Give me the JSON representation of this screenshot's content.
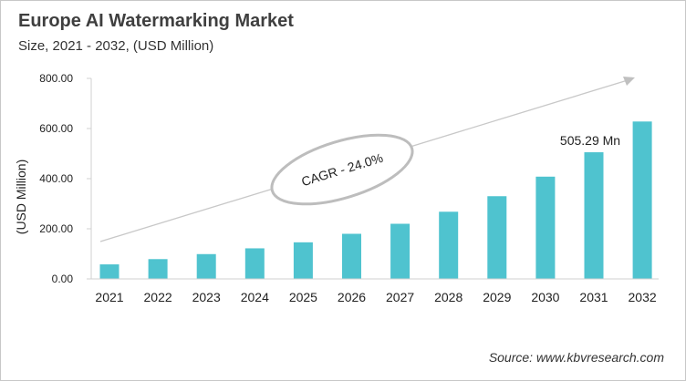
{
  "title": "Europe AI Watermarking Market",
  "subtitle": "Size, 2021 - 2032, (USD Million)",
  "source": "Source: www.kbvresearch.com",
  "chart_data": {
    "type": "bar",
    "title": "Europe AI Watermarking Market",
    "subtitle": "Size, 2021 - 2032, (USD Million)",
    "xlabel": "",
    "ylabel": "(USD Million)",
    "ylim": [
      0,
      800
    ],
    "yticks": [
      "0.00",
      "200.00",
      "400.00",
      "600.00",
      "800.00"
    ],
    "categories": [
      "2021",
      "2022",
      "2023",
      "2024",
      "2025",
      "2026",
      "2027",
      "2028",
      "2029",
      "2030",
      "2031",
      "2032"
    ],
    "values": [
      58,
      79,
      99,
      122,
      146,
      180,
      220,
      268,
      330,
      408,
      505.29,
      628
    ],
    "bar_color": "#4fc3cf",
    "grid": false,
    "annotations": {
      "data_label": "505.29 Mn",
      "data_label_category": "2031",
      "cagr": "CAGR - 24.0%"
    }
  }
}
